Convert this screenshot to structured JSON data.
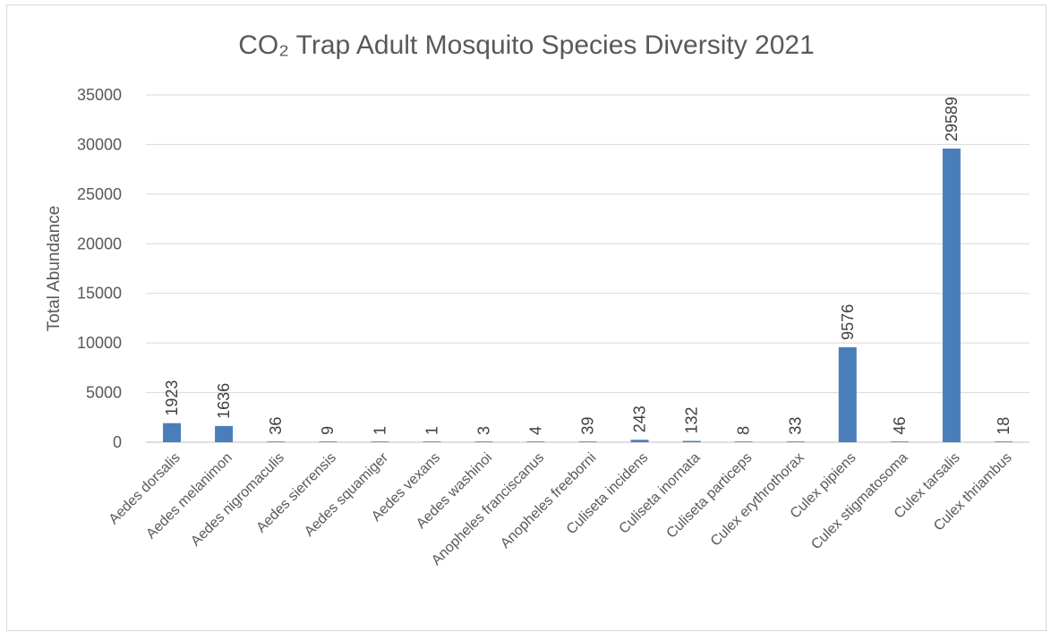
{
  "chart_data": {
    "type": "bar",
    "title": "CO₂ Trap Adult Mosquito Species Diversity 2021",
    "ylabel": "Total Abundance",
    "xlabel": "",
    "ylim": [
      0,
      35000
    ],
    "ytick_step": 5000,
    "yticks": [
      "0",
      "5000",
      "10000",
      "15000",
      "20000",
      "25000",
      "30000",
      "35000"
    ],
    "grid": true,
    "legend": "none",
    "bar_color": "#4a7ebb",
    "categories": [
      "Aedes dorsalis",
      "Aedes melanimon",
      "Aedes nigromaculis",
      "Aedes sierrensis",
      "Aedes squamiger",
      "Aedes vexans",
      "Aedes washinoi",
      "Anopheles franciscanus",
      "Anopheles freeborni",
      "Culiseta incidens",
      "Culiseta inornata",
      "Culiseta particeps",
      "Culex erythrothorax",
      "Culex pipiens",
      "Culex stigmatosoma",
      "Culex tarsalis",
      "Culex thriambus"
    ],
    "values": [
      1923,
      1636,
      36,
      9,
      1,
      1,
      3,
      4,
      39,
      243,
      132,
      8,
      33,
      9576,
      46,
      29589,
      18
    ],
    "data_labels": [
      "1923",
      "1636",
      "36",
      "9",
      "1",
      "1",
      "3",
      "4",
      "39",
      "243",
      "132",
      "8",
      "33",
      "9576",
      "46",
      "29589",
      "18"
    ]
  }
}
